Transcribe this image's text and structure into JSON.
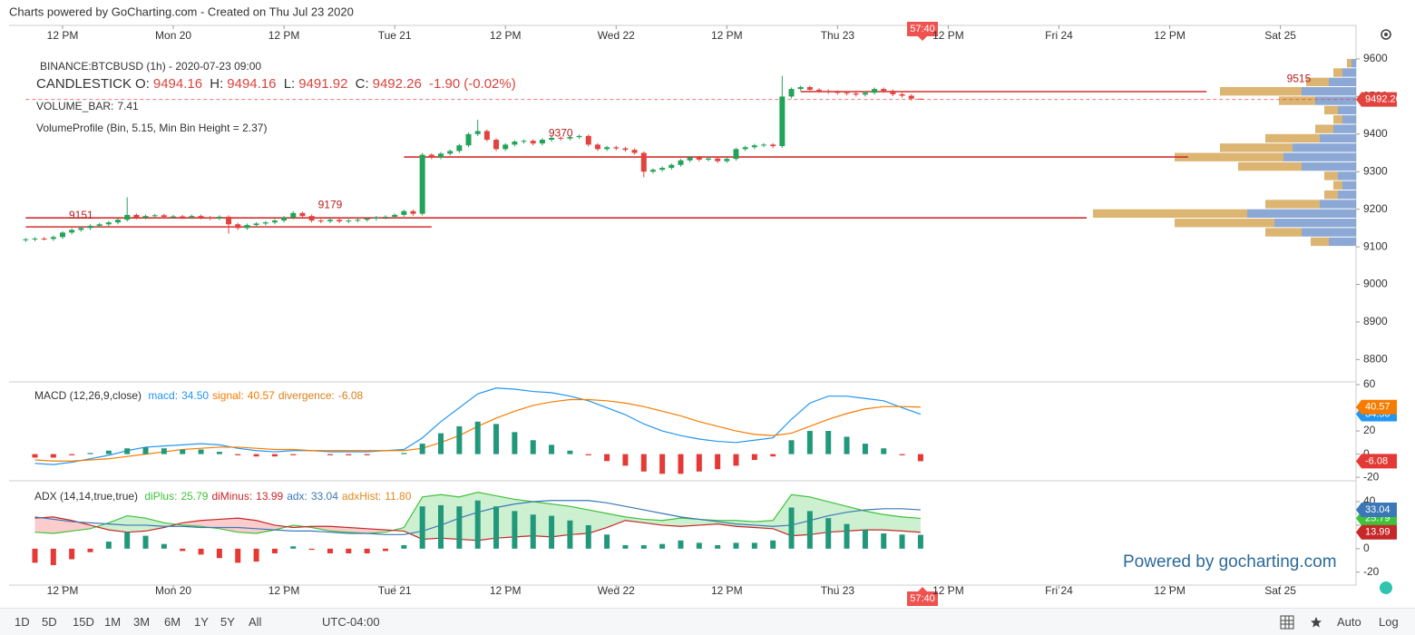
{
  "header": {
    "credit": "Charts powered by GoCharting.com - Created on Thu Jul 23 2020",
    "countdown": "57:40",
    "watermark": "Powered by gocharting.com"
  },
  "toolbar": {
    "ranges": [
      "1D",
      "5D",
      "15D",
      "1M",
      "3M",
      "6M",
      "1Y",
      "5Y",
      "All"
    ],
    "timezone": "UTC-04:00",
    "scale_modes": [
      "Auto",
      "Log"
    ]
  },
  "chart_data": [
    {
      "type": "candlestick",
      "symbol": "BINANCE:BTCBUSD (1h) - 2020-07-23 09:00",
      "series_label": "CANDLESTICK",
      "ohlc_labels": [
        "O:",
        "H:",
        "L:",
        "C:"
      ],
      "change_label": "-1.90",
      "change_pct_label": "(-0.02%)",
      "volume_label": "VOLUME_BAR:",
      "volume": 7.41,
      "profile_label": "VolumeProfile (Bin, 5.15, Min Bin Height = 2.37)",
      "up_color": "#23a35a",
      "down_color": "#e2433e",
      "level_color": "#d32f2f",
      "xlim": [
        6.2,
        152.2
      ],
      "xticks": [
        {
          "value": 12,
          "label": "12 PM"
        },
        {
          "value": 24,
          "label": "Mon 20"
        },
        {
          "value": 36,
          "label": "12 PM"
        },
        {
          "value": 48,
          "label": "Tue 21"
        },
        {
          "value": 60,
          "label": "12 PM"
        },
        {
          "value": 72,
          "label": "Wed 22"
        },
        {
          "value": 84,
          "label": "12 PM"
        },
        {
          "value": 96,
          "label": "Thu 23"
        },
        {
          "value": 108,
          "label": "12 PM"
        },
        {
          "value": 120,
          "label": "Fri 24"
        },
        {
          "value": 132,
          "label": "12 PM"
        },
        {
          "value": 144,
          "label": "Sat 25"
        }
      ],
      "ylim": [
        8743,
        9624
      ],
      "yticks": [
        9600,
        9500,
        9400,
        9300,
        9200,
        9100,
        9000,
        8900,
        8800
      ],
      "x": [
        8,
        9,
        10,
        11,
        12,
        13,
        14,
        15,
        16,
        17,
        18,
        19,
        20,
        21,
        22,
        23,
        24,
        25,
        26,
        27,
        28,
        29,
        30,
        31,
        32,
        33,
        34,
        35,
        36,
        37,
        38,
        39,
        40,
        41,
        42,
        43,
        44,
        45,
        46,
        47,
        48,
        49,
        50,
        51,
        52,
        53,
        54,
        55,
        56,
        57,
        58,
        59,
        60,
        61,
        62,
        63,
        64,
        65,
        66,
        67,
        68,
        69,
        70,
        71,
        72,
        73,
        74,
        75,
        76,
        77,
        78,
        79,
        80,
        81,
        82,
        83,
        84,
        85,
        86,
        87,
        88,
        89,
        90,
        91,
        92,
        93,
        94,
        95,
        96,
        97,
        98,
        99,
        100,
        101,
        102,
        103,
        104,
        105
      ],
      "open": [
        9118,
        9120,
        9122,
        9121,
        9126,
        9138,
        9145,
        9150,
        9156,
        9160,
        9165,
        9172,
        9185,
        9178,
        9182,
        9184,
        9180,
        9181,
        9179,
        9182,
        9178,
        9176,
        9180,
        9160,
        9150,
        9158,
        9162,
        9165,
        9170,
        9178,
        9190,
        9182,
        9170,
        9168,
        9172,
        9168,
        9170,
        9172,
        9175,
        9178,
        9180,
        9185,
        9195,
        9188,
        9345,
        9338,
        9348,
        9355,
        9370,
        9400,
        9408,
        9385,
        9360,
        9372,
        9380,
        9382,
        9375,
        9385,
        9390,
        9388,
        9392,
        9395,
        9372,
        9360,
        9365,
        9362,
        9358,
        9350,
        9300,
        9305,
        9310,
        9318,
        9330,
        9338,
        9332,
        9335,
        9328,
        9334,
        9360,
        9365,
        9370,
        9372,
        9368,
        9500,
        9520,
        9525,
        9518,
        9515,
        9512,
        9510,
        9508,
        9505,
        9510,
        9520,
        9515,
        9506,
        9502,
        9494.16
      ],
      "high": [
        9124,
        9126,
        9126,
        9130,
        9142,
        9149,
        9154,
        9160,
        9164,
        9169,
        9176,
        9232,
        9189,
        9186,
        9188,
        9188,
        9185,
        9185,
        9186,
        9186,
        9182,
        9184,
        9184,
        9164,
        9162,
        9166,
        9169,
        9174,
        9182,
        9195,
        9194,
        9186,
        9174,
        9176,
        9176,
        9174,
        9176,
        9179,
        9182,
        9184,
        9189,
        9199,
        9199,
        9350,
        9349,
        9352,
        9359,
        9374,
        9404,
        9438,
        9412,
        9389,
        9376,
        9384,
        9386,
        9386,
        9389,
        9394,
        9394,
        9396,
        9399,
        9399,
        9376,
        9369,
        9369,
        9366,
        9362,
        9354,
        9309,
        9314,
        9322,
        9334,
        9342,
        9342,
        9339,
        9339,
        9338,
        9364,
        9369,
        9374,
        9376,
        9376,
        9555,
        9524,
        9529,
        9529,
        9522,
        9519,
        9516,
        9514,
        9512,
        9514,
        9524,
        9524,
        9519,
        9510,
        9506,
        9494.16
      ],
      "low": [
        9113,
        9115,
        9117,
        9116,
        9121,
        9133,
        9140,
        9145,
        9151,
        9155,
        9160,
        9167,
        9173,
        9173,
        9177,
        9175,
        9175,
        9174,
        9174,
        9173,
        9171,
        9171,
        9135,
        9145,
        9145,
        9153,
        9157,
        9160,
        9165,
        9173,
        9177,
        9165,
        9163,
        9163,
        9163,
        9163,
        9165,
        9167,
        9170,
        9173,
        9175,
        9180,
        9183,
        9183,
        9333,
        9333,
        9343,
        9350,
        9365,
        9395,
        9380,
        9355,
        9355,
        9367,
        9375,
        9370,
        9370,
        9380,
        9383,
        9383,
        9387,
        9367,
        9355,
        9355,
        9357,
        9353,
        9345,
        9285,
        9295,
        9300,
        9305,
        9313,
        9325,
        9327,
        9327,
        9323,
        9323,
        9329,
        9355,
        9360,
        9365,
        9363,
        9363,
        9495,
        9515,
        9513,
        9510,
        9507,
        9505,
        9503,
        9500,
        9500,
        9505,
        9510,
        9501,
        9497,
        9489,
        9491.92
      ],
      "close": [
        9120,
        9122,
        9121,
        9126,
        9138,
        9145,
        9150,
        9156,
        9160,
        9165,
        9172,
        9185,
        9178,
        9182,
        9184,
        9180,
        9181,
        9179,
        9182,
        9178,
        9176,
        9180,
        9160,
        9150,
        9158,
        9162,
        9165,
        9170,
        9178,
        9190,
        9182,
        9170,
        9168,
        9172,
        9168,
        9170,
        9172,
        9175,
        9178,
        9180,
        9185,
        9195,
        9188,
        9345,
        9338,
        9348,
        9355,
        9370,
        9400,
        9408,
        9385,
        9360,
        9372,
        9380,
        9382,
        9375,
        9385,
        9390,
        9388,
        9392,
        9395,
        9372,
        9360,
        9365,
        9362,
        9358,
        9350,
        9300,
        9305,
        9310,
        9318,
        9330,
        9338,
        9332,
        9335,
        9328,
        9334,
        9360,
        9365,
        9370,
        9372,
        9368,
        9500,
        9520,
        9525,
        9518,
        9515,
        9512,
        9510,
        9508,
        9505,
        9510,
        9520,
        9515,
        9506,
        9502,
        9494.16,
        9492.26
      ],
      "levels": [
        {
          "value": 9153,
          "from": 8,
          "to": 52
        },
        {
          "value": 9177,
          "from": 8,
          "to": 123
        },
        {
          "value": 9339,
          "from": 49,
          "to": 134
        },
        {
          "value": 9513,
          "from": 92,
          "to": 136
        }
      ],
      "annotations": [
        {
          "value": 9151,
          "x": 14
        },
        {
          "value": 9179,
          "x": 41
        },
        {
          "value": 9370,
          "x": 66
        },
        {
          "value": 9515,
          "x": 146
        }
      ],
      "profile": {
        "bins": [
          9100,
          9125,
          9150,
          9175,
          9200,
          9225,
          9250,
          9275,
          9300,
          9325,
          9350,
          9375,
          9400,
          9425,
          9450,
          9475,
          9500,
          9525,
          9550,
          9575,
          9600
        ],
        "sell": [
          30,
          60,
          90,
          120,
          40,
          20,
          15,
          20,
          60,
          80,
          70,
          40,
          25,
          15,
          20,
          45,
          60,
          30,
          15,
          5
        ],
        "buy": [
          20,
          40,
          110,
          170,
          60,
          15,
          10,
          15,
          70,
          120,
          80,
          60,
          20,
          10,
          15,
          40,
          90,
          25,
          10,
          5
        ],
        "sell_color": "#7f9fd0",
        "buy_color": "#d8ad63"
      }
    },
    {
      "type": "line",
      "title": "MACD (12,26,9,close)",
      "ylim": [
        -23,
        61.5
      ],
      "yticks": [
        60,
        40,
        20,
        0,
        -20
      ],
      "x": [
        9,
        11,
        13,
        15,
        17,
        19,
        21,
        23,
        25,
        27,
        29,
        31,
        33,
        35,
        37,
        39,
        41,
        43,
        45,
        47,
        49,
        51,
        53,
        55,
        57,
        59,
        61,
        63,
        65,
        67,
        69,
        71,
        73,
        75,
        77,
        79,
        81,
        83,
        85,
        87,
        89,
        91,
        93,
        95,
        97,
        99,
        101,
        103,
        105
      ],
      "series": [
        {
          "name": "macd:",
          "color": "#2196f3",
          "last_label": "34.50",
          "values": [
            -8,
            -9,
            -7,
            -4,
            -1,
            3,
            6,
            7,
            8,
            9,
            8,
            5,
            3,
            2,
            3,
            3,
            2,
            2,
            2,
            3,
            4,
            14,
            28,
            40,
            52,
            57,
            56,
            54,
            53,
            50,
            46,
            40,
            34,
            26,
            20,
            16,
            13,
            11,
            10,
            12,
            14,
            30,
            44,
            50,
            50,
            48,
            46,
            40,
            34.5
          ]
        },
        {
          "name": "signal:",
          "color": "#f57c00",
          "last_label": "40.57",
          "values": [
            -5,
            -6,
            -6,
            -5,
            -4,
            -2,
            0,
            2,
            4,
            5,
            6,
            6,
            5,
            4,
            4,
            3,
            3,
            3,
            3,
            3,
            3,
            5,
            10,
            16,
            24,
            31,
            37,
            42,
            45,
            47,
            47,
            46,
            44,
            41,
            37,
            33,
            28,
            24,
            20,
            17,
            16,
            18,
            24,
            30,
            35,
            39,
            41,
            41,
            40.57
          ]
        },
        {
          "name": "divergence:",
          "color": "#d9801c",
          "style": "bars",
          "up_color": "#22987a",
          "down_color": "#e53935",
          "last_label": "-6.08",
          "values": [
            -3,
            -3,
            -1,
            1,
            3,
            5,
            6,
            5,
            4,
            4,
            2,
            -1,
            -2,
            -2,
            -1,
            0,
            -1,
            -1,
            -1,
            0,
            1,
            9,
            18,
            24,
            28,
            26,
            19,
            12,
            8,
            3,
            -1,
            -6,
            -10,
            -15,
            -17,
            -17,
            -15,
            -13,
            -10,
            -5,
            -2,
            12,
            20,
            20,
            15,
            9,
            5,
            -1,
            -6.08
          ]
        }
      ]
    },
    {
      "type": "line",
      "title": "ADX (14,14,true,true)",
      "ylim": [
        -31,
        57
      ],
      "yticks": [
        40,
        20,
        0,
        -20
      ],
      "fill_colors": [
        "rgba(76,200,90,0.28)",
        "rgba(240,110,110,0.35)"
      ],
      "x": [
        9,
        11,
        13,
        15,
        17,
        19,
        21,
        23,
        25,
        27,
        29,
        31,
        33,
        35,
        37,
        39,
        41,
        43,
        45,
        47,
        49,
        51,
        53,
        55,
        57,
        59,
        61,
        63,
        65,
        67,
        69,
        71,
        73,
        75,
        77,
        79,
        81,
        83,
        85,
        87,
        89,
        91,
        93,
        95,
        97,
        99,
        101,
        103,
        105
      ],
      "series": [
        {
          "name": "diPlus:",
          "color": "#3fc23a",
          "last_label": "25.79",
          "values": [
            14,
            13,
            15,
            17,
            22,
            28,
            26,
            22,
            20,
            19,
            17,
            14,
            13,
            16,
            20,
            18,
            15,
            14,
            13,
            14,
            18,
            44,
            46,
            44,
            48,
            45,
            42,
            40,
            38,
            36,
            33,
            30,
            27,
            25,
            24,
            26,
            25,
            24,
            24,
            23,
            24,
            46,
            44,
            40,
            36,
            32,
            29,
            27,
            25.79
          ]
        },
        {
          "name": "diMinus:",
          "color": "#c62828",
          "last_label": "13.99",
          "values": [
            26,
            27,
            24,
            20,
            16,
            14,
            15,
            18,
            22,
            24,
            25,
            26,
            24,
            20,
            18,
            19,
            19,
            18,
            17,
            16,
            15,
            8,
            9,
            8,
            7,
            9,
            10,
            11,
            10,
            12,
            13,
            18,
            24,
            22,
            20,
            19,
            20,
            21,
            19,
            18,
            17,
            11,
            12,
            14,
            15,
            16,
            16,
            15,
            13.99
          ]
        },
        {
          "name": "adx:",
          "color": "#3b78b8",
          "last_label": "33.04",
          "values": [
            27,
            25,
            23,
            22,
            21,
            20,
            20,
            19,
            19,
            18,
            18,
            18,
            17,
            16,
            15,
            15,
            14,
            13,
            13,
            12,
            12,
            15,
            20,
            26,
            31,
            35,
            38,
            40,
            41,
            41,
            41,
            39,
            36,
            33,
            30,
            27,
            25,
            23,
            21,
            20,
            19,
            20,
            24,
            28,
            31,
            33,
            34,
            34,
            33.04
          ]
        },
        {
          "name": "adxHist:",
          "color": "#e08a1e",
          "style": "bars",
          "up_color": "#22987a",
          "down_color": "#e53935",
          "last_label": "11.80",
          "values": [
            -12,
            -14,
            -9,
            -3,
            6,
            14,
            11,
            4,
            -2,
            -5,
            -8,
            -12,
            -11,
            -4,
            2,
            -1,
            -4,
            -4,
            -4,
            -2,
            3,
            36,
            37,
            36,
            41,
            36,
            32,
            29,
            28,
            24,
            20,
            12,
            3,
            3,
            4,
            7,
            5,
            3,
            5,
            5,
            7,
            35,
            32,
            26,
            21,
            16,
            13,
            12,
            11.8
          ]
        }
      ]
    }
  ]
}
